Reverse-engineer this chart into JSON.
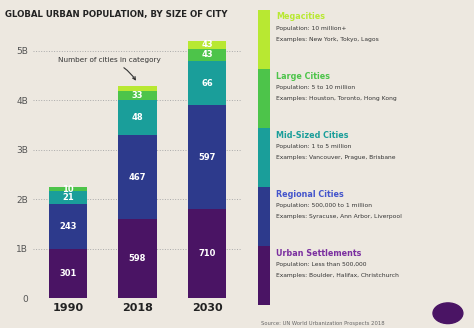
{
  "title": "GLOBAL URBAN POPULATION, BY SIZE OF CITY",
  "years": [
    "1990",
    "2018",
    "2030"
  ],
  "categories": [
    "Urban Settlements",
    "Regional Cities",
    "Mid-Sized Cities",
    "Large Cities",
    "Megacities"
  ],
  "colors": [
    "#4a1464",
    "#2d3a8c",
    "#1a9e9a",
    "#4dc44a",
    "#b8e832"
  ],
  "segment_heights_millions": {
    "1990": [
      1000,
      900,
      270,
      80,
      0
    ],
    "2018": [
      1600,
      1700,
      700,
      200,
      100
    ],
    "2030": [
      1800,
      2100,
      900,
      250,
      150
    ]
  },
  "city_counts": {
    "1990": [
      "301",
      "243",
      "21",
      "10",
      ""
    ],
    "2018": [
      "598",
      "467",
      "48",
      "33",
      ""
    ],
    "2030": [
      "710",
      "597",
      "66",
      "43",
      "43"
    ]
  },
  "legend_entries": [
    {
      "name": "Megacities",
      "title_color": "#b8e832",
      "pop": "Population: 10 million+",
      "ex": "Examples: New York, Tokyo, Lagos",
      "color": "#b8e832"
    },
    {
      "name": "Large Cities",
      "title_color": "#4dc44a",
      "pop": "Population: 5 to 10 million",
      "ex": "Examples: Houston, Toronto, Hong Kong",
      "color": "#4dc44a"
    },
    {
      "name": "Mid-Sized Cities",
      "title_color": "#1a9e9a",
      "pop": "Population: 1 to 5 million",
      "ex": "Examples: Vancouver, Prague, Brisbane",
      "color": "#1a9e9a"
    },
    {
      "name": "Regional Cities",
      "title_color": "#4455cc",
      "pop": "Population: 500,000 to 1 million",
      "ex": "Examples: Syracuse, Ann Arbor, Liverpool",
      "color": "#2d3a8c"
    },
    {
      "name": "Urban Settlements",
      "title_color": "#7b2fa0",
      "pop": "Population: Less than 500,000",
      "ex": "Examples: Boulder, Halifax, Christchurch",
      "color": "#4a1464"
    }
  ],
  "source": "Source: UN World Urbanization Prospects 2018",
  "annotation": "Number of cities in category",
  "bg_color": "#ede8e0",
  "ylim": [
    0,
    5500
  ],
  "yticks": [
    0,
    1000,
    2000,
    3000,
    4000,
    5000
  ],
  "ytick_labels": [
    "0",
    "1B",
    "2B",
    "3B",
    "4B",
    "5B"
  ]
}
